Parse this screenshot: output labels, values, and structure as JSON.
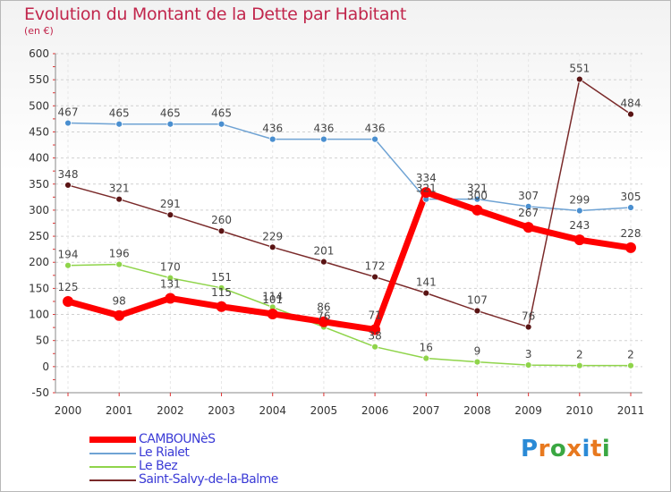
{
  "chart_data": {
    "type": "line",
    "title": "Evolution du Montant de la Dette par Habitant",
    "subtitle": "(en €)",
    "x": [
      "2000",
      "2001",
      "2002",
      "2003",
      "2004",
      "2005",
      "2006",
      "2007",
      "2008",
      "2009",
      "2010",
      "2011"
    ],
    "ylim": [
      -50,
      600
    ],
    "yticks": [
      -50,
      0,
      50,
      100,
      150,
      200,
      250,
      300,
      350,
      400,
      450,
      500,
      550,
      600
    ],
    "grid": "horizontal-dashed",
    "legend_position": "bottom-left",
    "series": [
      {
        "name": "CAMBOUNèS",
        "color": "#ff0000",
        "values": [
          125,
          98,
          131,
          115,
          101,
          86,
          71,
          334,
          300,
          267,
          243,
          228
        ],
        "labels": [
          "125",
          "98",
          "131",
          "115",
          "101",
          "86",
          "71",
          "334",
          "300",
          "267",
          "243",
          "228"
        ]
      },
      {
        "name": "Le Rialet",
        "color": "#6fa3d4",
        "values": [
          467,
          465,
          465,
          465,
          436,
          436,
          436,
          321,
          321,
          307,
          299,
          305
        ],
        "labels": [
          "467",
          "465",
          "465",
          "465",
          "436",
          "436",
          "436",
          "321",
          "321",
          "307",
          "299",
          "305"
        ]
      },
      {
        "name": "Le Bez",
        "color": "#8fd44a",
        "values": [
          194,
          196,
          170,
          151,
          114,
          76,
          38,
          16,
          9,
          3,
          2,
          2
        ],
        "labels": [
          "194",
          "196",
          "170",
          "151",
          "114",
          "76",
          "38",
          "16",
          "9",
          "3",
          "2",
          "2"
        ]
      },
      {
        "name": "Saint-Salvy-de-la-Balme",
        "color": "#7a2a2a",
        "values": [
          348,
          321,
          291,
          260,
          229,
          201,
          172,
          141,
          107,
          76,
          551,
          484
        ],
        "labels": [
          "348",
          "321",
          "291",
          "260",
          "229",
          "201",
          "172",
          "141",
          "107",
          "76",
          "551",
          "484"
        ]
      }
    ]
  },
  "logo": {
    "text": "Proxiti",
    "colors": [
      "#2a8ad6",
      "#e8791f",
      "#3aa742",
      "#e8791f",
      "#2a8ad6",
      "#e8791f",
      "#3aa742"
    ]
  }
}
